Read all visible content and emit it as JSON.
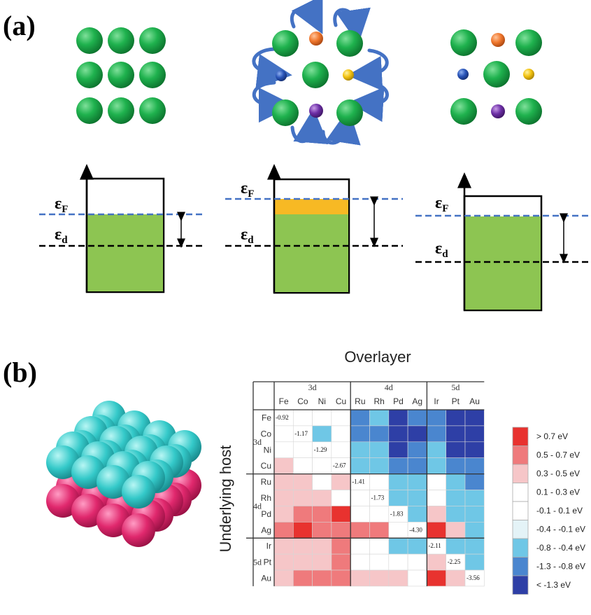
{
  "panel_a": {
    "label": "(a)",
    "fermi_label": "ε",
    "fermi_sub": "F",
    "dband_label": "ε",
    "dband_sub": "d"
  },
  "panel_b": {
    "label": "(b)",
    "top_title": "Overlayer",
    "side_title": "Underlying host",
    "col_groups": [
      "3d",
      "4d",
      "5d"
    ],
    "row_groups": [
      "3d",
      "4d",
      "5d"
    ],
    "columns": [
      "Fe",
      "Co",
      "Ni",
      "Cu",
      "Ru",
      "Rh",
      "Pd",
      "Ag",
      "Ir",
      "Pt",
      "Au"
    ],
    "rows": [
      "Fe",
      "Co",
      "Ni",
      "Cu",
      "Ru",
      "Rh",
      "Pd",
      "Ag",
      "Ir",
      "Pt",
      "Au"
    ],
    "diagonal_values": [
      "-0.92",
      "-1.17",
      "-1.29",
      "-2.67",
      "-1.41",
      "-1.73",
      "-1.83",
      "-4.30",
      "-2.11",
      "-2.25",
      "-3.56"
    ],
    "legend": [
      {
        "text": "> 0.7 eV",
        "color": "#e8322f"
      },
      {
        "text": "0.5 - 0.7 eV",
        "color": "#ef7a7c"
      },
      {
        "text": "0.3 - 0.5 eV",
        "color": "#f6c6c8"
      },
      {
        "text": "0.1 - 0.3 eV",
        "color": "#ffffff"
      },
      {
        "text": "-0.1 - 0.1 eV",
        "color": "#ffffff"
      },
      {
        "text": "-0.4 - -0.1 eV",
        "color": "#e4f3f7"
      },
      {
        "text": "-0.8 - -0.4 eV",
        "color": "#6fc7e6"
      },
      {
        "text": "-1.3 - -0.8 eV",
        "color": "#4a86cf"
      },
      {
        "text": "< -1.3 eV",
        "color": "#2e3fa6"
      }
    ],
    "grid": [
      [
        3,
        4,
        5,
        4,
        0,
        0,
        0,
        0,
        0,
        0,
        0
      ],
      [
        4,
        3,
        3,
        4,
        0,
        1,
        0,
        0,
        0,
        0,
        0
      ],
      [
        4,
        4,
        3,
        4,
        0,
        0,
        0,
        0,
        0,
        0,
        0
      ],
      [
        3,
        2,
        3,
        3,
        2,
        3,
        3,
        0,
        2,
        1,
        1
      ],
      [
        2,
        2,
        3,
        3,
        3,
        2,
        3,
        3,
        2,
        3,
        1
      ],
      [
        2,
        2,
        3,
        3,
        3,
        3,
        3,
        4,
        3,
        4,
        2
      ],
      [
        2,
        1,
        1,
        0,
        3,
        3,
        3,
        3,
        2,
        3,
        3
      ],
      [
        0,
        0,
        1,
        0,
        1,
        1,
        3,
        3,
        0,
        2,
        3
      ],
      [
        2,
        2,
        2,
        1,
        3,
        3,
        6,
        3,
        3,
        3,
        3
      ],
      [
        2,
        2,
        2,
        1,
        3,
        3,
        3,
        3,
        3,
        3,
        4
      ],
      [
        1,
        0,
        0,
        0,
        1,
        2,
        2,
        3,
        0,
        3,
        3
      ]
    ]
  }
}
